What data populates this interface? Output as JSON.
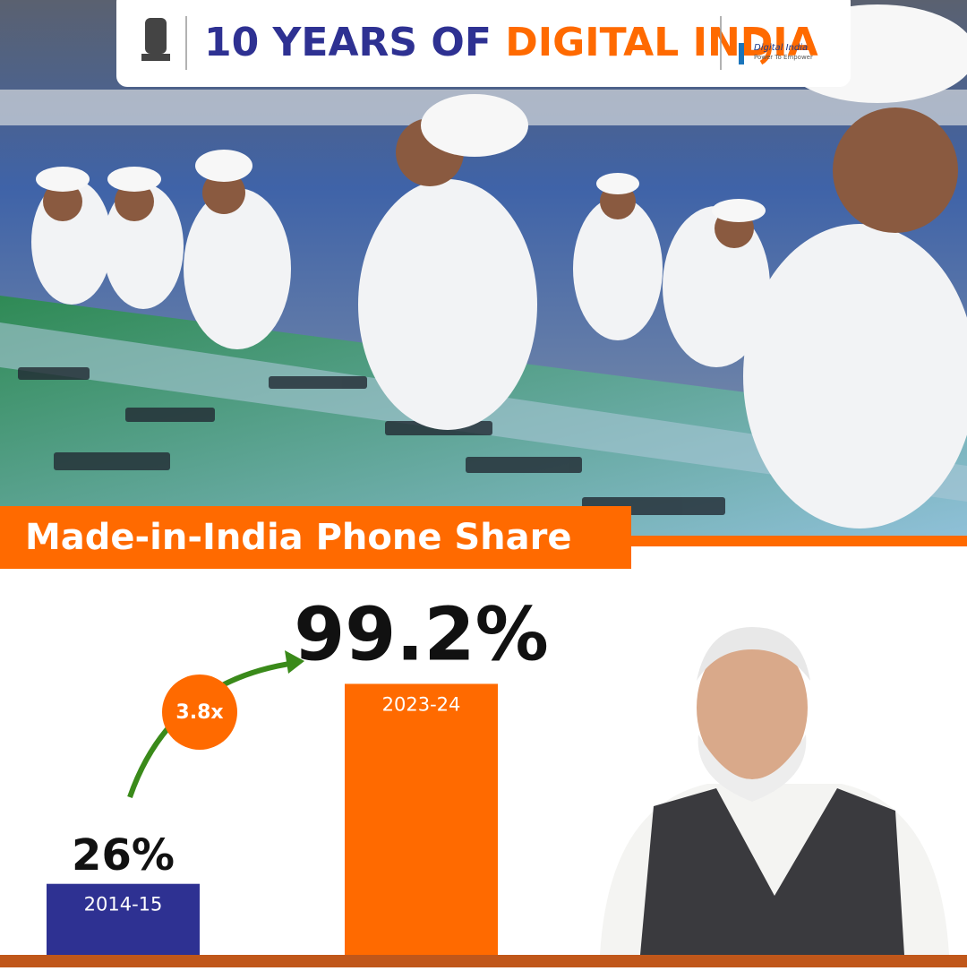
{
  "header": {
    "title_lead": "10 YEARS OF ",
    "title_accent": "DIGITAL INDIA",
    "logo_name": "Digital India",
    "logo_tagline": "Power To Empower"
  },
  "chart_data": {
    "type": "bar",
    "title": "Made-in-India Phone Share",
    "categories": [
      "2014-15",
      "2023-24"
    ],
    "values": [
      26,
      99.2
    ],
    "value_labels": [
      "26%",
      "99.2%"
    ],
    "colors": [
      "#2e3192",
      "#ff6a00"
    ],
    "annotation": "3.8x"
  }
}
